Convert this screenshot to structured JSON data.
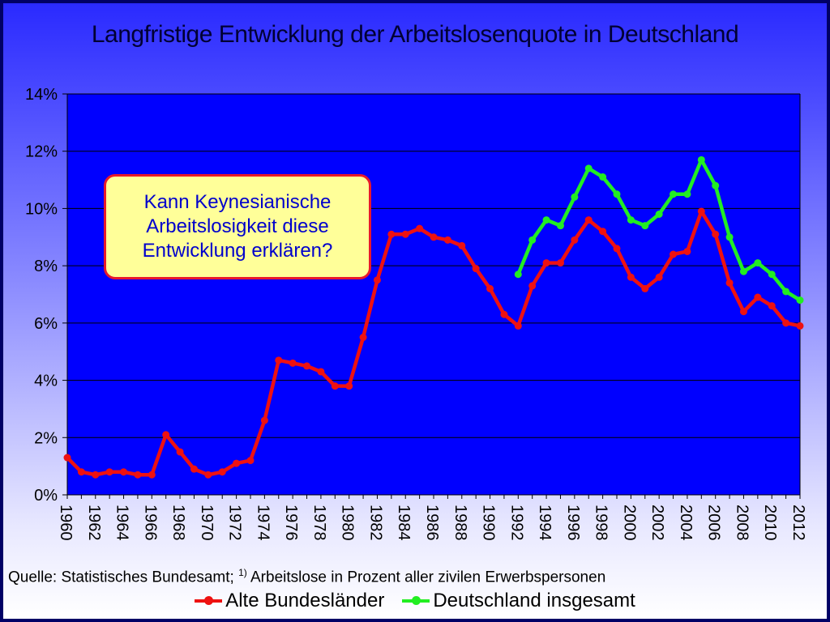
{
  "chart_data": {
    "type": "line",
    "title": "Langfristige Entwicklung der Arbeitslosenquote in Deutschland",
    "x": [
      1960,
      1961,
      1962,
      1963,
      1964,
      1965,
      1966,
      1967,
      1968,
      1969,
      1970,
      1971,
      1972,
      1973,
      1974,
      1975,
      1976,
      1977,
      1978,
      1979,
      1980,
      1981,
      1982,
      1983,
      1984,
      1985,
      1986,
      1987,
      1988,
      1989,
      1990,
      1991,
      1992,
      1993,
      1994,
      1995,
      1996,
      1997,
      1998,
      1999,
      2000,
      2001,
      2002,
      2003,
      2004,
      2005,
      2006,
      2007,
      2008,
      2009,
      2010,
      2011,
      2012
    ],
    "xticks": [
      "1960",
      "1962",
      "1964",
      "1966",
      "1968",
      "1970",
      "1972",
      "1974",
      "1976",
      "1978",
      "1980",
      "1982",
      "1984",
      "1986",
      "1988",
      "1990",
      "1992",
      "1994",
      "1996",
      "1998",
      "2000",
      "2002",
      "2004",
      "2006",
      "2008",
      "2010",
      "2012"
    ],
    "yticks": [
      "0%",
      "2%",
      "4%",
      "6%",
      "8%",
      "10%",
      "12%",
      "14%"
    ],
    "ylim": [
      0,
      14
    ],
    "grid": true,
    "legend_position": "bottom",
    "series": [
      {
        "name": "Alte Bundesländer",
        "color": "#ee1111",
        "values": [
          1.3,
          0.8,
          0.7,
          0.8,
          0.8,
          0.7,
          0.7,
          2.1,
          1.5,
          0.9,
          0.7,
          0.8,
          1.1,
          1.2,
          2.6,
          4.7,
          4.6,
          4.5,
          4.3,
          3.8,
          3.8,
          5.5,
          7.5,
          9.1,
          9.1,
          9.3,
          9.0,
          8.9,
          8.7,
          7.9,
          7.2,
          6.3,
          5.9,
          7.3,
          8.1,
          8.1,
          8.9,
          9.6,
          9.2,
          8.6,
          7.6,
          7.2,
          7.6,
          8.4,
          8.5,
          9.9,
          9.1,
          7.4,
          6.4,
          6.9,
          6.6,
          6.0,
          5.9
        ]
      },
      {
        "name": "Deutschland insgesamt",
        "color": "#22ee22",
        "values": [
          null,
          null,
          null,
          null,
          null,
          null,
          null,
          null,
          null,
          null,
          null,
          null,
          null,
          null,
          null,
          null,
          null,
          null,
          null,
          null,
          null,
          null,
          null,
          null,
          null,
          null,
          null,
          null,
          null,
          null,
          null,
          null,
          7.7,
          8.9,
          9.6,
          9.4,
          10.4,
          11.4,
          11.1,
          10.5,
          9.6,
          9.4,
          9.8,
          10.5,
          10.5,
          11.7,
          10.8,
          9.0,
          7.8,
          8.1,
          7.7,
          7.1,
          6.8
        ]
      }
    ]
  },
  "callout_text": "Kann Keynesianische Arbeitslosigkeit diese Entwicklung erklären?",
  "source_note": {
    "prefix": "Quelle: Statistisches Bundesamt; ",
    "sup": "1)",
    "suffix": " Arbeitslose in Prozent aller zivilen Erwerbspersonen"
  },
  "colors": {
    "plot_background": "#0000ff",
    "slide_border": "#000066"
  }
}
